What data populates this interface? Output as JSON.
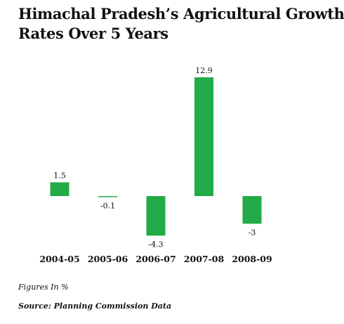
{
  "title_lines": [
    "Himachal Pradesh’s Agricultural Growth",
    "Rates Over 5 Years"
  ],
  "notes": {
    "figures": "Figures In %",
    "source": "Source: Planning Commission Data"
  },
  "colors": {
    "bar": "#22ab46",
    "text": "#111111"
  },
  "chart_data": {
    "type": "bar",
    "title": "Himachal Pradesh’s Agricultural Growth Rates Over 5 Years",
    "xlabel": "",
    "ylabel": "",
    "categories": [
      "2004-05",
      "2005-06",
      "2006-07",
      "2007-08",
      "2008-09"
    ],
    "values": [
      1.5,
      -0.1,
      -4.3,
      12.9,
      -3
    ],
    "value_labels": [
      "1.5",
      "-0.1",
      "-4.3",
      "12.9",
      "-3"
    ],
    "unit": "%",
    "grid": false,
    "legend": "none"
  }
}
